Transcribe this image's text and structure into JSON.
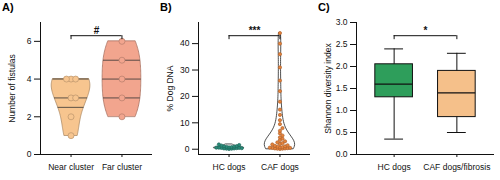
{
  "chart_data": [
    {
      "type": "violin",
      "title": "A)",
      "categories": [
        "Near cluster",
        "Far cluster"
      ],
      "values": [
        [
          4,
          4,
          4,
          3,
          3,
          2,
          1
        ],
        [
          6,
          5,
          4,
          3,
          2
        ]
      ],
      "colors": [
        "#f7c58f",
        "#f2a58e"
      ],
      "ylabel": "Number of fistulas",
      "ylim": [
        0,
        7
      ],
      "yticks": [
        0,
        2,
        4,
        6
      ],
      "annotation": "#"
    },
    {
      "type": "strip",
      "title": "B)",
      "categories": [
        "HC dogs",
        "CAF dogs"
      ],
      "values": [
        [
          0.1,
          0.2,
          0.2,
          0.3,
          0.3,
          0.4,
          0.5,
          0.5,
          0.6,
          0.7,
          0.8,
          0.9,
          1.0,
          1.1,
          1.2,
          1.4,
          1.6,
          1.8,
          0.4,
          0.6
        ],
        [
          0.1,
          0.2,
          0.2,
          0.3,
          0.3,
          0.4,
          0.5,
          0.5,
          0.6,
          0.7,
          0.8,
          1.0,
          1.1,
          1.3,
          1.5,
          1.8,
          2.0,
          2.3,
          2.6,
          3.0,
          3.5,
          4.0,
          4.5,
          5.2,
          6.0,
          7.0,
          8.0,
          9.5,
          11,
          13,
          15,
          18,
          22,
          26,
          31,
          36,
          40,
          44
        ]
      ],
      "colors": [
        "#2a8c7a",
        "#e8833a"
      ],
      "ylabel": "% Dog DNA",
      "ylim": [
        -2,
        48
      ],
      "yticks": [
        0,
        10,
        20,
        30,
        40
      ],
      "annotation": "***"
    },
    {
      "type": "box",
      "title": "C)",
      "categories": [
        "HC dogs",
        "CAF dogs/fibrosis"
      ],
      "boxes": [
        {
          "min": 0.35,
          "q1": 1.3,
          "median": 1.6,
          "q3": 2.05,
          "max": 2.4
        },
        {
          "min": 0.5,
          "q1": 0.85,
          "median": 1.4,
          "q3": 1.9,
          "max": 2.3
        }
      ],
      "colors": [
        "#2e9e5b",
        "#f5c08a"
      ],
      "ylabel": "Shannon diversity index",
      "ylim": [
        0,
        3
      ],
      "yticks": [
        {
          "value": 0,
          "label": "0.0"
        },
        {
          "value": 0.5,
          "label": "0.5"
        },
        {
          "value": 1,
          "label": "1.0"
        },
        {
          "value": 1.5,
          "label": "1.5"
        },
        {
          "value": 2,
          "label": "2.0"
        },
        {
          "value": 2.5,
          "label": "2.5"
        },
        {
          "value": 3,
          "label": "3.0"
        }
      ],
      "annotation": "*"
    }
  ]
}
